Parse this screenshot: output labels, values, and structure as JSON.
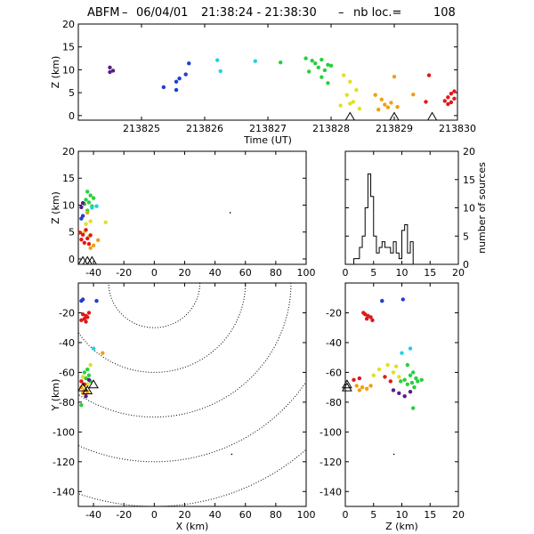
{
  "title": {
    "network": "ABFM",
    "date": "06/04/01",
    "time_range": "21:38:24 - 21:38:30",
    "count_label": "nb loc.=",
    "count": "108"
  },
  "chart_data": [
    {
      "type": "scatter",
      "panel": "time-height",
      "xlabel": "Time (UT)",
      "ylabel": "Z (km)",
      "xlim": [
        213824.0,
        213830.0
      ],
      "ylim": [
        -1,
        20
      ],
      "xticks": [
        "213825",
        "213826",
        "213827",
        "213828",
        "213829",
        "213830"
      ],
      "yticks": [
        "0",
        "5",
        "10",
        "15",
        "20"
      ],
      "stations_x": [
        213828.3,
        213829.0,
        213829.6
      ],
      "points": [
        [
          213824.5,
          10.5,
          "#5a1a8c"
        ],
        [
          213824.55,
          9.8,
          "#5a1a8c"
        ],
        [
          213824.5,
          9.5,
          "#5a1a8c"
        ],
        [
          213825.35,
          6.2,
          "#1e3fd0"
        ],
        [
          213825.55,
          7.4,
          "#1e3fd0"
        ],
        [
          213825.6,
          8.1,
          "#1e3fd0"
        ],
        [
          213825.55,
          5.6,
          "#1e3fd0"
        ],
        [
          213825.7,
          9.0,
          "#1e3fd0"
        ],
        [
          213825.75,
          11.4,
          "#1e3fd0"
        ],
        [
          213826.25,
          9.7,
          "#22d0e0"
        ],
        [
          213826.2,
          12.1,
          "#22d0e0"
        ],
        [
          213826.8,
          11.9,
          "#22d0e0"
        ],
        [
          213827.2,
          11.6,
          "#28d03c"
        ],
        [
          213827.6,
          12.5,
          "#28d03c"
        ],
        [
          213827.7,
          12.0,
          "#28d03c"
        ],
        [
          213827.75,
          11.4,
          "#28d03c"
        ],
        [
          213827.85,
          12.2,
          "#28d03c"
        ],
        [
          213827.95,
          11.1,
          "#28d03c"
        ],
        [
          213827.8,
          10.5,
          "#28d03c"
        ],
        [
          213827.9,
          9.9,
          "#28d03c"
        ],
        [
          213828.0,
          10.9,
          "#28d03c"
        ],
        [
          213827.65,
          9.6,
          "#28d03c"
        ],
        [
          213827.85,
          8.4,
          "#28d03c"
        ],
        [
          213827.95,
          7.1,
          "#28d03c"
        ],
        [
          213828.2,
          8.8,
          "#e0e020"
        ],
        [
          213828.3,
          7.4,
          "#e0e020"
        ],
        [
          213828.4,
          5.6,
          "#e0e020"
        ],
        [
          213828.25,
          4.5,
          "#e0e020"
        ],
        [
          213828.35,
          3.0,
          "#e0e020"
        ],
        [
          213828.15,
          2.2,
          "#e0e020"
        ],
        [
          213828.45,
          1.5,
          "#e0e020"
        ],
        [
          213828.3,
          2.6,
          "#e0e020"
        ],
        [
          213828.7,
          4.5,
          "#f0a010"
        ],
        [
          213828.8,
          3.5,
          "#f0a010"
        ],
        [
          213828.85,
          2.4,
          "#f0a010"
        ],
        [
          213828.9,
          1.8,
          "#f0a010"
        ],
        [
          213828.95,
          2.8,
          "#f0a010"
        ],
        [
          213829.0,
          8.5,
          "#f0a010"
        ],
        [
          213829.05,
          1.9,
          "#f0a010"
        ],
        [
          213829.3,
          4.6,
          "#f0a010"
        ],
        [
          213828.75,
          1.3,
          "#f0a010"
        ],
        [
          213829.55,
          8.8,
          "#e01818"
        ],
        [
          213829.5,
          3.0,
          "#e01818"
        ],
        [
          213829.8,
          3.2,
          "#e01818"
        ],
        [
          213829.85,
          4.0,
          "#e01818"
        ],
        [
          213829.9,
          4.8,
          "#e01818"
        ],
        [
          213829.95,
          3.7,
          "#e01818"
        ],
        [
          213829.9,
          2.9,
          "#e01818"
        ],
        [
          213829.95,
          5.3,
          "#e01818"
        ],
        [
          213829.85,
          2.5,
          "#e01818"
        ]
      ]
    },
    {
      "type": "scatter",
      "panel": "x-height",
      "xlabel": "",
      "ylabel": "Z (km)",
      "xlim": [
        -50,
        100
      ],
      "ylim": [
        -1,
        20
      ],
      "xticks": [
        "-40",
        "-20",
        "0",
        "20",
        "40",
        "60",
        "80",
        "100"
      ],
      "yticks": [
        "0",
        "5",
        "10",
        "15",
        "20"
      ],
      "stations_x": [
        -47,
        -44,
        -41
      ],
      "points": [
        [
          -44,
          12.5,
          "#28d03c"
        ],
        [
          -42,
          11.8,
          "#28d03c"
        ],
        [
          -45,
          11.0,
          "#28d03c"
        ],
        [
          -43,
          10.5,
          "#28d03c"
        ],
        [
          -41,
          9.8,
          "#28d03c"
        ],
        [
          -46,
          10.2,
          "#28d03c"
        ],
        [
          -40,
          11.3,
          "#28d03c"
        ],
        [
          -44,
          9.0,
          "#28d03c"
        ],
        [
          -47,
          10.4,
          "#5a1a8c"
        ],
        [
          -48,
          9.6,
          "#5a1a8c"
        ],
        [
          -48,
          7.5,
          "#1e3fd0"
        ],
        [
          -47,
          8.0,
          "#1e3fd0"
        ],
        [
          -41,
          9.5,
          "#22d0e0"
        ],
        [
          -38,
          9.8,
          "#22d0e0"
        ],
        [
          -45,
          6.5,
          "#e0e020"
        ],
        [
          -42,
          7.0,
          "#e0e020"
        ],
        [
          -32,
          6.8,
          "#e0e020"
        ],
        [
          -46,
          5.0,
          "#e0e020"
        ],
        [
          -43,
          4.2,
          "#e0e020"
        ],
        [
          -44,
          8.6,
          "#f0a010"
        ],
        [
          -40,
          2.5,
          "#f0a010"
        ],
        [
          -42,
          2.0,
          "#f0a010"
        ],
        [
          -37,
          3.5,
          "#f0a010"
        ],
        [
          -47,
          4.5,
          "#e01818"
        ],
        [
          -48,
          3.6,
          "#e01818"
        ],
        [
          -46,
          3.0,
          "#e01818"
        ],
        [
          -44,
          3.8,
          "#e01818"
        ],
        [
          -42,
          4.4,
          "#e01818"
        ],
        [
          -45,
          5.4,
          "#e01818"
        ],
        [
          -43,
          2.8,
          "#e01818"
        ],
        [
          -49,
          4.9,
          "#e01818"
        ],
        [
          50,
          8.6,
          "#000000"
        ]
      ]
    },
    {
      "type": "bar",
      "panel": "height-histogram",
      "xlabel": "",
      "ylabel": "number of sources",
      "xlim": [
        0,
        20
      ],
      "ylim": [
        0,
        20
      ],
      "xticks": [
        "0",
        "5",
        "10",
        "15",
        "20"
      ],
      "yticks": [
        "0",
        "5",
        "10",
        "15",
        "20"
      ],
      "bin_width": 0.5,
      "bin_start": 0,
      "values": [
        0,
        0,
        0,
        1,
        1,
        3,
        5,
        10,
        16,
        12,
        5,
        2,
        3,
        4,
        3,
        3,
        2,
        4,
        2,
        1,
        6,
        7,
        2,
        4,
        0,
        0,
        0,
        0,
        0,
        0,
        0,
        0,
        0,
        0,
        0,
        0,
        0,
        0,
        0,
        0
      ]
    },
    {
      "type": "scatter",
      "panel": "plan-view",
      "xlabel": "X (km)",
      "ylabel": "Y (km)",
      "xlim": [
        -50,
        100
      ],
      "ylim": [
        -150,
        0
      ],
      "xticks": [
        "-40",
        "-20",
        "0",
        "20",
        "40",
        "60",
        "80",
        "100"
      ],
      "yticks": [
        "-140",
        "-120",
        "-100",
        "-80",
        "-60",
        "-40",
        "-20"
      ],
      "contour_center": [
        0,
        0
      ],
      "contour_radii": [
        30,
        60,
        90,
        120,
        150
      ],
      "stations": [
        [
          -47,
          -70
        ],
        [
          -44,
          -72
        ],
        [
          -40,
          -68
        ]
      ],
      "points": [
        [
          -48,
          -12,
          "#1e3fd0"
        ],
        [
          -47,
          -11,
          "#1e3fd0"
        ],
        [
          -38,
          -12,
          "#1e3fd0"
        ],
        [
          -47,
          -21,
          "#e01818"
        ],
        [
          -45,
          -22,
          "#e01818"
        ],
        [
          -44,
          -23,
          "#e01818"
        ],
        [
          -46,
          -24,
          "#e01818"
        ],
        [
          -43,
          -20,
          "#e01818"
        ],
        [
          -48,
          -25,
          "#e01818"
        ],
        [
          -45,
          -26,
          "#e01818"
        ],
        [
          -40,
          -44,
          "#22d0e0"
        ],
        [
          -34,
          -47,
          "#f0a010"
        ],
        [
          -42,
          -55,
          "#e0e020"
        ],
        [
          -44,
          -58,
          "#28d03c"
        ],
        [
          -46,
          -60,
          "#28d03c"
        ],
        [
          -43,
          -62,
          "#28d03c"
        ],
        [
          -45,
          -64,
          "#28d03c"
        ],
        [
          -42,
          -66,
          "#28d03c"
        ],
        [
          -47,
          -63,
          "#e0e020"
        ],
        [
          -44,
          -68,
          "#e0e020"
        ],
        [
          -48,
          -66,
          "#e01818"
        ],
        [
          -46,
          -68,
          "#e01818"
        ],
        [
          -48,
          -70,
          "#f0a010"
        ],
        [
          -46,
          -72,
          "#f0a010"
        ],
        [
          -44,
          -73,
          "#f0a010"
        ],
        [
          -47,
          -74,
          "#f0a010"
        ],
        [
          -43,
          -65,
          "#5a1a8c"
        ],
        [
          -45,
          -76,
          "#5a1a8c"
        ],
        [
          -48,
          -82,
          "#28d03c"
        ],
        [
          51,
          -115,
          "#000000"
        ]
      ]
    },
    {
      "type": "scatter",
      "panel": "height-y",
      "xlabel": "Z (km)",
      "ylabel": "",
      "xlim": [
        0,
        20
      ],
      "ylim": [
        -150,
        0
      ],
      "xticks": [
        "0",
        "5",
        "10",
        "15",
        "20"
      ],
      "yticks": [
        "-140",
        "-120",
        "-100",
        "-80",
        "-60",
        "-40",
        "-20"
      ],
      "stations": [
        [
          0.3,
          -70
        ],
        [
          0.3,
          -68
        ]
      ],
      "points": [
        [
          6.5,
          -12,
          "#1e3fd0"
        ],
        [
          10.2,
          -11,
          "#1e3fd0"
        ],
        [
          3.5,
          -21,
          "#e01818"
        ],
        [
          4.0,
          -22,
          "#e01818"
        ],
        [
          4.5,
          -23,
          "#e01818"
        ],
        [
          3.8,
          -24,
          "#e01818"
        ],
        [
          3.2,
          -20,
          "#e01818"
        ],
        [
          4.8,
          -25,
          "#e01818"
        ],
        [
          11.5,
          -44,
          "#22d0e0"
        ],
        [
          10.0,
          -47,
          "#22d0e0"
        ],
        [
          7.5,
          -55,
          "#e0e020"
        ],
        [
          9.0,
          -56,
          "#e0e020"
        ],
        [
          6.0,
          -58,
          "#e0e020"
        ],
        [
          8.5,
          -60,
          "#e0e020"
        ],
        [
          5.0,
          -62,
          "#e0e020"
        ],
        [
          9.5,
          -63,
          "#e0e020"
        ],
        [
          11.0,
          -55,
          "#28d03c"
        ],
        [
          12.0,
          -60,
          "#28d03c"
        ],
        [
          11.5,
          -62,
          "#28d03c"
        ],
        [
          12.5,
          -64,
          "#28d03c"
        ],
        [
          10.5,
          -65,
          "#28d03c"
        ],
        [
          11.8,
          -67,
          "#28d03c"
        ],
        [
          12.8,
          -66,
          "#28d03c"
        ],
        [
          13.5,
          -65,
          "#28d03c"
        ],
        [
          12.2,
          -70,
          "#28d03c"
        ],
        [
          11.0,
          -68,
          "#28d03c"
        ],
        [
          9.8,
          -66,
          "#28d03c"
        ],
        [
          12.0,
          -84,
          "#28d03c"
        ],
        [
          7.0,
          -63,
          "#e01818"
        ],
        [
          2.5,
          -64,
          "#e01818"
        ],
        [
          8.0,
          -66,
          "#e01818"
        ],
        [
          1.5,
          -65,
          "#e01818"
        ],
        [
          2.0,
          -69,
          "#f0a010"
        ],
        [
          3.0,
          -70,
          "#f0a010"
        ],
        [
          2.5,
          -72,
          "#f0a010"
        ],
        [
          3.8,
          -71,
          "#f0a010"
        ],
        [
          4.5,
          -69,
          "#f0a010"
        ],
        [
          8.5,
          -72,
          "#5a1a8c"
        ],
        [
          9.5,
          -74,
          "#5a1a8c"
        ],
        [
          10.5,
          -76,
          "#5a1a8c"
        ],
        [
          11.5,
          -73,
          "#5a1a8c"
        ],
        [
          8.6,
          -115,
          "#000000"
        ]
      ]
    }
  ]
}
